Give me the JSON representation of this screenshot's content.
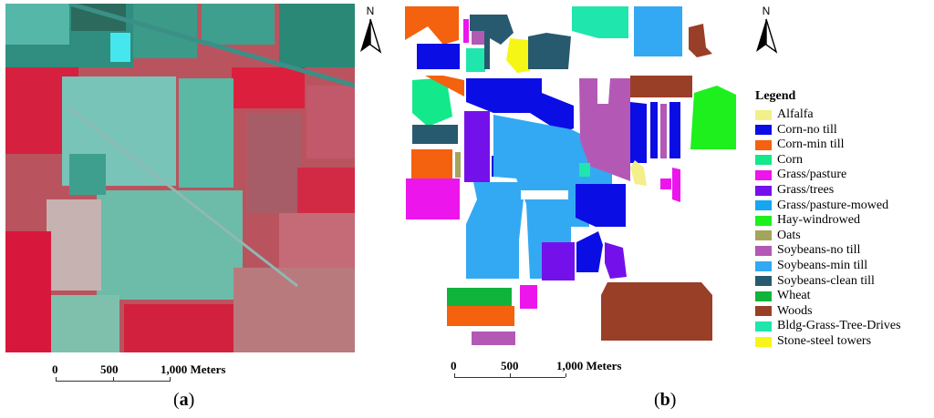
{
  "panel_a": {
    "caption_open": "(",
    "caption_letter": "a",
    "caption_close": ")",
    "north_label": "N",
    "scale": {
      "ticks": [
        "0",
        "500",
        "1,000 Meters"
      ]
    }
  },
  "panel_b": {
    "caption_open": "(",
    "caption_letter": "b",
    "caption_close": ")",
    "north_label": "N",
    "scale": {
      "ticks": [
        "0",
        "500",
        "1,000 Meters"
      ]
    },
    "legend": {
      "title": "Legend",
      "items": [
        {
          "label": "Alfalfa",
          "color": "#f3ef8a"
        },
        {
          "label": "Corn-no till",
          "color": "#0b0de5"
        },
        {
          "label": "Corn-min till",
          "color": "#f4610f"
        },
        {
          "label": "Corn",
          "color": "#13e88b"
        },
        {
          "label": "Grass/pasture",
          "color": "#ec16ec"
        },
        {
          "label": "Grass/trees",
          "color": "#7411ea"
        },
        {
          "label": "Grass/pasture-mowed",
          "color": "#17a6f1"
        },
        {
          "label": "Hay-windrowed",
          "color": "#1df01d"
        },
        {
          "label": "Oats",
          "color": "#a3a55c"
        },
        {
          "label": "Soybeans-no till",
          "color": "#b359b5"
        },
        {
          "label": "Soybeans-min till",
          "color": "#33a9f3"
        },
        {
          "label": "Soybeans-clean till",
          "color": "#275a6f"
        },
        {
          "label": "Wheat",
          "color": "#11b43a"
        },
        {
          "label": "Woods",
          "color": "#9a3f27"
        },
        {
          "label": "Bldg-Grass-Tree-Drives",
          "color": "#1fe6ad"
        },
        {
          "label": "Stone-steel towers",
          "color": "#f6f616"
        }
      ]
    }
  }
}
